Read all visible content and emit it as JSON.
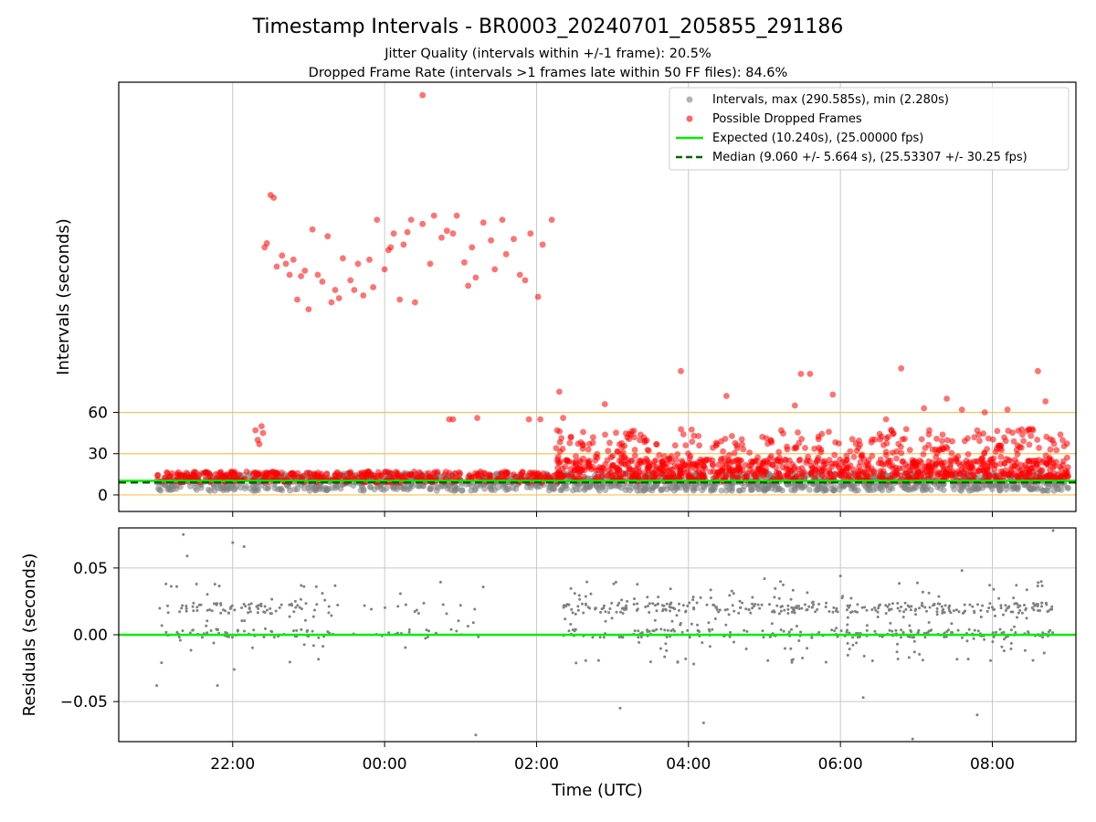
{
  "title": "Timestamp Intervals - BR0003_20240701_205855_291186",
  "subtitle_lines": [
    "Jitter Quality (intervals within +/-1 frame): 20.5%",
    "Dropped Frame Rate (intervals >1 frames late within 50 FF files): 84.6%"
  ],
  "colors": {
    "intervals": "#808080",
    "dropped": "#ff0000",
    "expected": "#00ee00",
    "median": "#006400",
    "threshold": "#ffc04d",
    "grid": "#c8c8c8"
  },
  "chart_data": [
    {
      "type": "scatter",
      "panel": "intervals",
      "xlabel": "",
      "ylabel": "Intervals (seconds)",
      "x_unit": "hours relative to 2024-07-01 00:00 UTC",
      "xlim": [
        20.5,
        33.1
      ],
      "ylim": [
        -12,
        300
      ],
      "y_ticks": [
        0,
        30,
        60
      ],
      "x_ticks": [
        22,
        24,
        26,
        28,
        30,
        32
      ],
      "grid": true,
      "threshold_lines": [
        0,
        30,
        60
      ],
      "legend_position": "upper-right",
      "legend": [
        "Intervals, max (290.585s), min (2.280s)",
        "Possible Dropped Frames",
        "Expected (10.240s), (25.00000 fps)",
        "Median (9.060 +/- 5.664 s), (25.53307 +/- 30.25 fps)"
      ],
      "expected_value": 10.24,
      "median_value": 9.06,
      "intervals_range": [
        21.0,
        33.0
      ],
      "intervals_max": 290.585,
      "intervals_min": 2.28,
      "dropped_points": {
        "x": [
          22.42,
          22.45,
          22.5,
          22.54,
          22.58,
          22.65,
          22.7,
          22.75,
          22.8,
          22.85,
          22.9,
          22.95,
          23.05,
          23.12,
          23.18,
          23.25,
          23.35,
          23.4,
          23.45,
          23.55,
          23.6,
          23.65,
          23.72,
          23.8,
          23.85,
          23.9,
          24.0,
          24.05,
          24.08,
          24.12,
          24.2,
          24.25,
          24.3,
          24.35,
          24.4,
          24.5,
          24.6,
          24.65,
          24.75,
          24.82,
          24.9,
          24.95,
          25.05,
          25.1,
          25.15,
          25.2,
          25.3,
          25.4,
          25.45,
          25.55,
          25.6,
          25.7,
          25.78,
          25.85,
          25.92,
          26.02,
          26.08,
          26.2,
          22.3,
          22.33,
          22.35,
          22.38,
          22.4,
          23.0,
          23.3,
          24.85,
          25.9,
          26.3,
          26.9,
          27.9,
          28.5,
          29.4,
          29.48,
          29.6,
          29.9,
          30.6,
          30.8,
          31.1,
          31.4,
          31.6,
          31.9,
          32.2,
          32.6,
          32.7,
          26.05,
          26.35,
          24.9,
          25.22
        ],
        "y": [
          180,
          183,
          218,
          216,
          166,
          174,
          168,
          160,
          171,
          142,
          159,
          163,
          193,
          160,
          155,
          188,
          149,
          143,
          172,
          156,
          149,
          168,
          145,
          171,
          151,
          200,
          164,
          178,
          180,
          190,
          142,
          182,
          191,
          200,
          140,
          197,
          168,
          203,
          187,
          192,
          190,
          203,
          169,
          152,
          180,
          158,
          198,
          185,
          164,
          200,
          175,
          186,
          160,
          156,
          190,
          144,
          182,
          200,
          47,
          40,
          37,
          50,
          45,
          135,
          140,
          55,
          55,
          75,
          66,
          90,
          72,
          65,
          88,
          88,
          73,
          55,
          92,
          63,
          70,
          62,
          60,
          62,
          90,
          68,
          55,
          56,
          55,
          56
        ]
      },
      "dropped_outlier": {
        "x": 24.5,
        "y": 290.585
      }
    },
    {
      "type": "scatter",
      "panel": "residuals",
      "xlabel": "Time (UTC)",
      "ylabel": "Residuals (seconds)",
      "x_unit": "hours relative to 2024-07-01 00:00 UTC",
      "xlim": [
        20.5,
        33.1
      ],
      "ylim": [
        -0.08,
        0.08
      ],
      "y_ticks": [
        -0.05,
        0.0,
        0.05
      ],
      "y_tick_labels": [
        "−0.05",
        "0.00",
        "0.05"
      ],
      "x_ticks": [
        22,
        24,
        26,
        28,
        30,
        32
      ],
      "x_tick_labels": [
        "22:00",
        "00:00",
        "02:00",
        "04:00",
        "06:00",
        "08:00"
      ],
      "grid": true,
      "zero_line": 0.0,
      "segments": [
        [
          21.0,
          23.3
        ],
        [
          23.3,
          25.3
        ],
        [
          26.35,
          32.8
        ]
      ],
      "extra_points": {
        "x": [
          21.35,
          21.4,
          21.0,
          21.8,
          22.0,
          22.15,
          22.02,
          23.1,
          25.2,
          28.2,
          27.1,
          29.0,
          30.0,
          30.3,
          30.95,
          31.6,
          31.8,
          32.8,
          25.0
        ],
        "y": [
          0.075,
          0.059,
          -0.038,
          -0.038,
          0.069,
          0.066,
          -0.026,
          0.036,
          -0.075,
          -0.066,
          -0.055,
          0.042,
          0.044,
          -0.047,
          -0.078,
          0.048,
          -0.06,
          0.078,
          0.022
        ]
      }
    }
  ]
}
